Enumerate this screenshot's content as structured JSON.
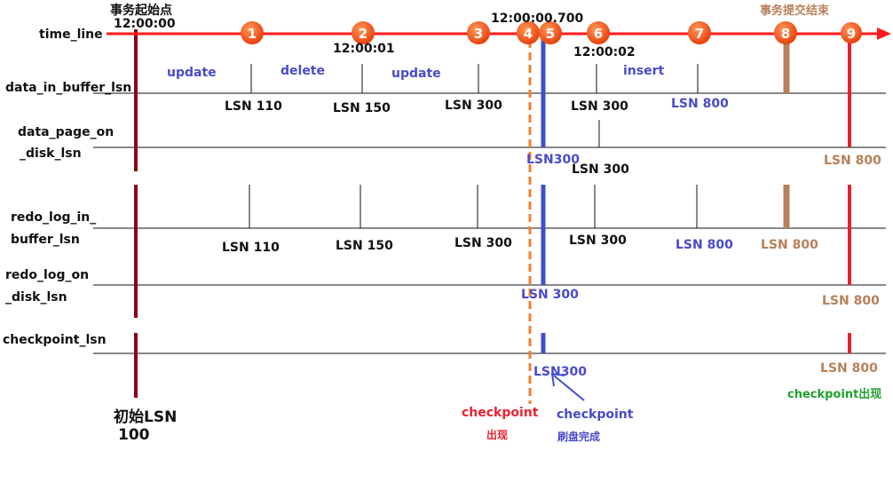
{
  "colors": {
    "timeline": "#ff1a1a",
    "start": "#8b0015",
    "checkpoint_appear": "#f08030",
    "flush": "#3f4fcc",
    "commit": "#b8805a",
    "end": "#e8222e",
    "green": "#20a030",
    "marker": "#f05a1a"
  },
  "rows": {
    "time_line": "time_line",
    "data_in_buffer": "data_in_buffer_lsn",
    "data_page_1": "data_page_on",
    "data_page_2": "_disk_lsn",
    "redo_buf_1": "redo_log_in_",
    "redo_buf_2": "buffer_lsn",
    "redo_disk_1": "redo_log_on",
    "redo_disk_2": "_disk_lsn",
    "checkpoint": "checkpoint_lsn"
  },
  "timeline": {
    "start_title": "事务起始点",
    "t0": "12:00:00",
    "t1": "12:00:01",
    "t_700": "12:00:00.700",
    "t2": "12:00:02",
    "commit_title": "事务提交结束",
    "markers": [
      "1",
      "2",
      "3",
      "4",
      "5",
      "6",
      "7",
      "8",
      "9"
    ]
  },
  "ops": [
    "update",
    "delete",
    "update",
    "insert"
  ],
  "data_in_buffer": [
    "LSN 110",
    "LSN 150",
    "LSN 300",
    "LSN 300",
    "LSN 800"
  ],
  "data_page": [
    "LSN300",
    "LSN 300",
    "LSN 800"
  ],
  "redo_buffer": [
    "LSN 110",
    "LSN 150",
    "LSN 300",
    "LSN 300",
    "LSN 800",
    "LSN 800"
  ],
  "redo_disk": [
    "LSN 300",
    "LSN 800"
  ],
  "checkpoint": [
    "LSN300",
    "LSN 800"
  ],
  "notes": {
    "initial_1": "初始LSN",
    "initial_2": "100",
    "cp_1": "checkpoint",
    "cp_2": "出现",
    "flush_1": "checkpoint",
    "flush_2": "刷盘完成",
    "cp_final": "checkpoint出现"
  }
}
